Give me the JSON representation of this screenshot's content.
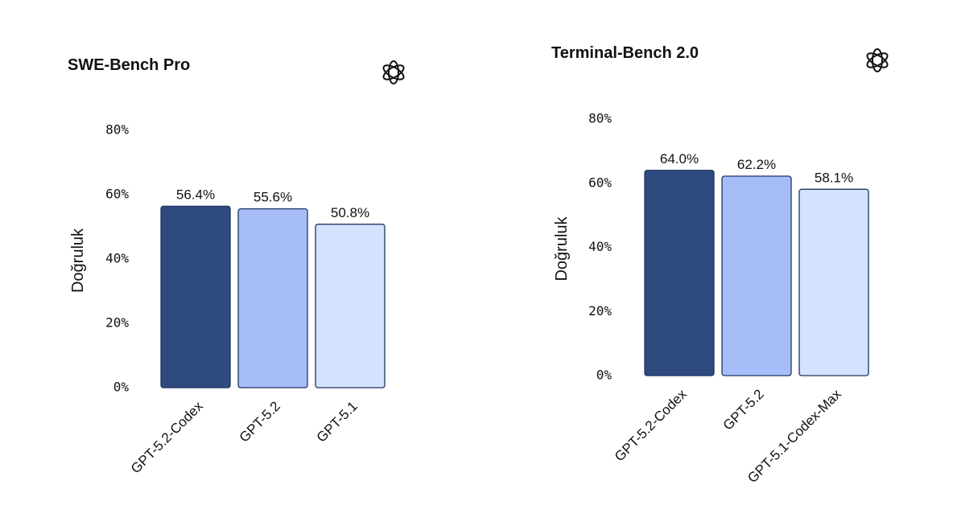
{
  "chart_data": [
    {
      "type": "bar",
      "title": "SWE-Bench Pro",
      "y_label": "Doğruluk",
      "categories": [
        "GPT-5.2-Codex",
        "GPT-5.2",
        "GPT-5.1"
      ],
      "values": [
        56.4,
        55.6,
        50.8
      ],
      "value_labels": [
        "56.4%",
        "55.6%",
        "50.8%"
      ],
      "colors": [
        "#2e4a7f",
        "#a6bdf8",
        "#d3e2fd"
      ],
      "ylim": [
        0,
        80
      ],
      "yticks": [
        {
          "value": 0,
          "label": "0%"
        },
        {
          "value": 20,
          "label": "20%"
        },
        {
          "value": 40,
          "label": "40%"
        },
        {
          "value": 60,
          "label": "60%"
        },
        {
          "value": 80,
          "label": "80%"
        }
      ]
    },
    {
      "type": "bar",
      "title": "Terminal-Bench 2.0",
      "y_label": "Doğruluk",
      "categories": [
        "GPT-5.2-Codex",
        "GPT-5.2",
        "GPT-5.1-Codex-Max"
      ],
      "values": [
        64.0,
        62.2,
        58.1
      ],
      "value_labels": [
        "64.0%",
        "62.2%",
        "58.1%"
      ],
      "colors": [
        "#2e4a7f",
        "#a6bdf8",
        "#d3e2fd"
      ],
      "ylim": [
        0,
        80
      ],
      "yticks": [
        {
          "value": 0,
          "label": "0%"
        },
        {
          "value": 20,
          "label": "20%"
        },
        {
          "value": 40,
          "label": "40%"
        },
        {
          "value": 60,
          "label": "60%"
        },
        {
          "value": 80,
          "label": "80%"
        }
      ]
    }
  ]
}
